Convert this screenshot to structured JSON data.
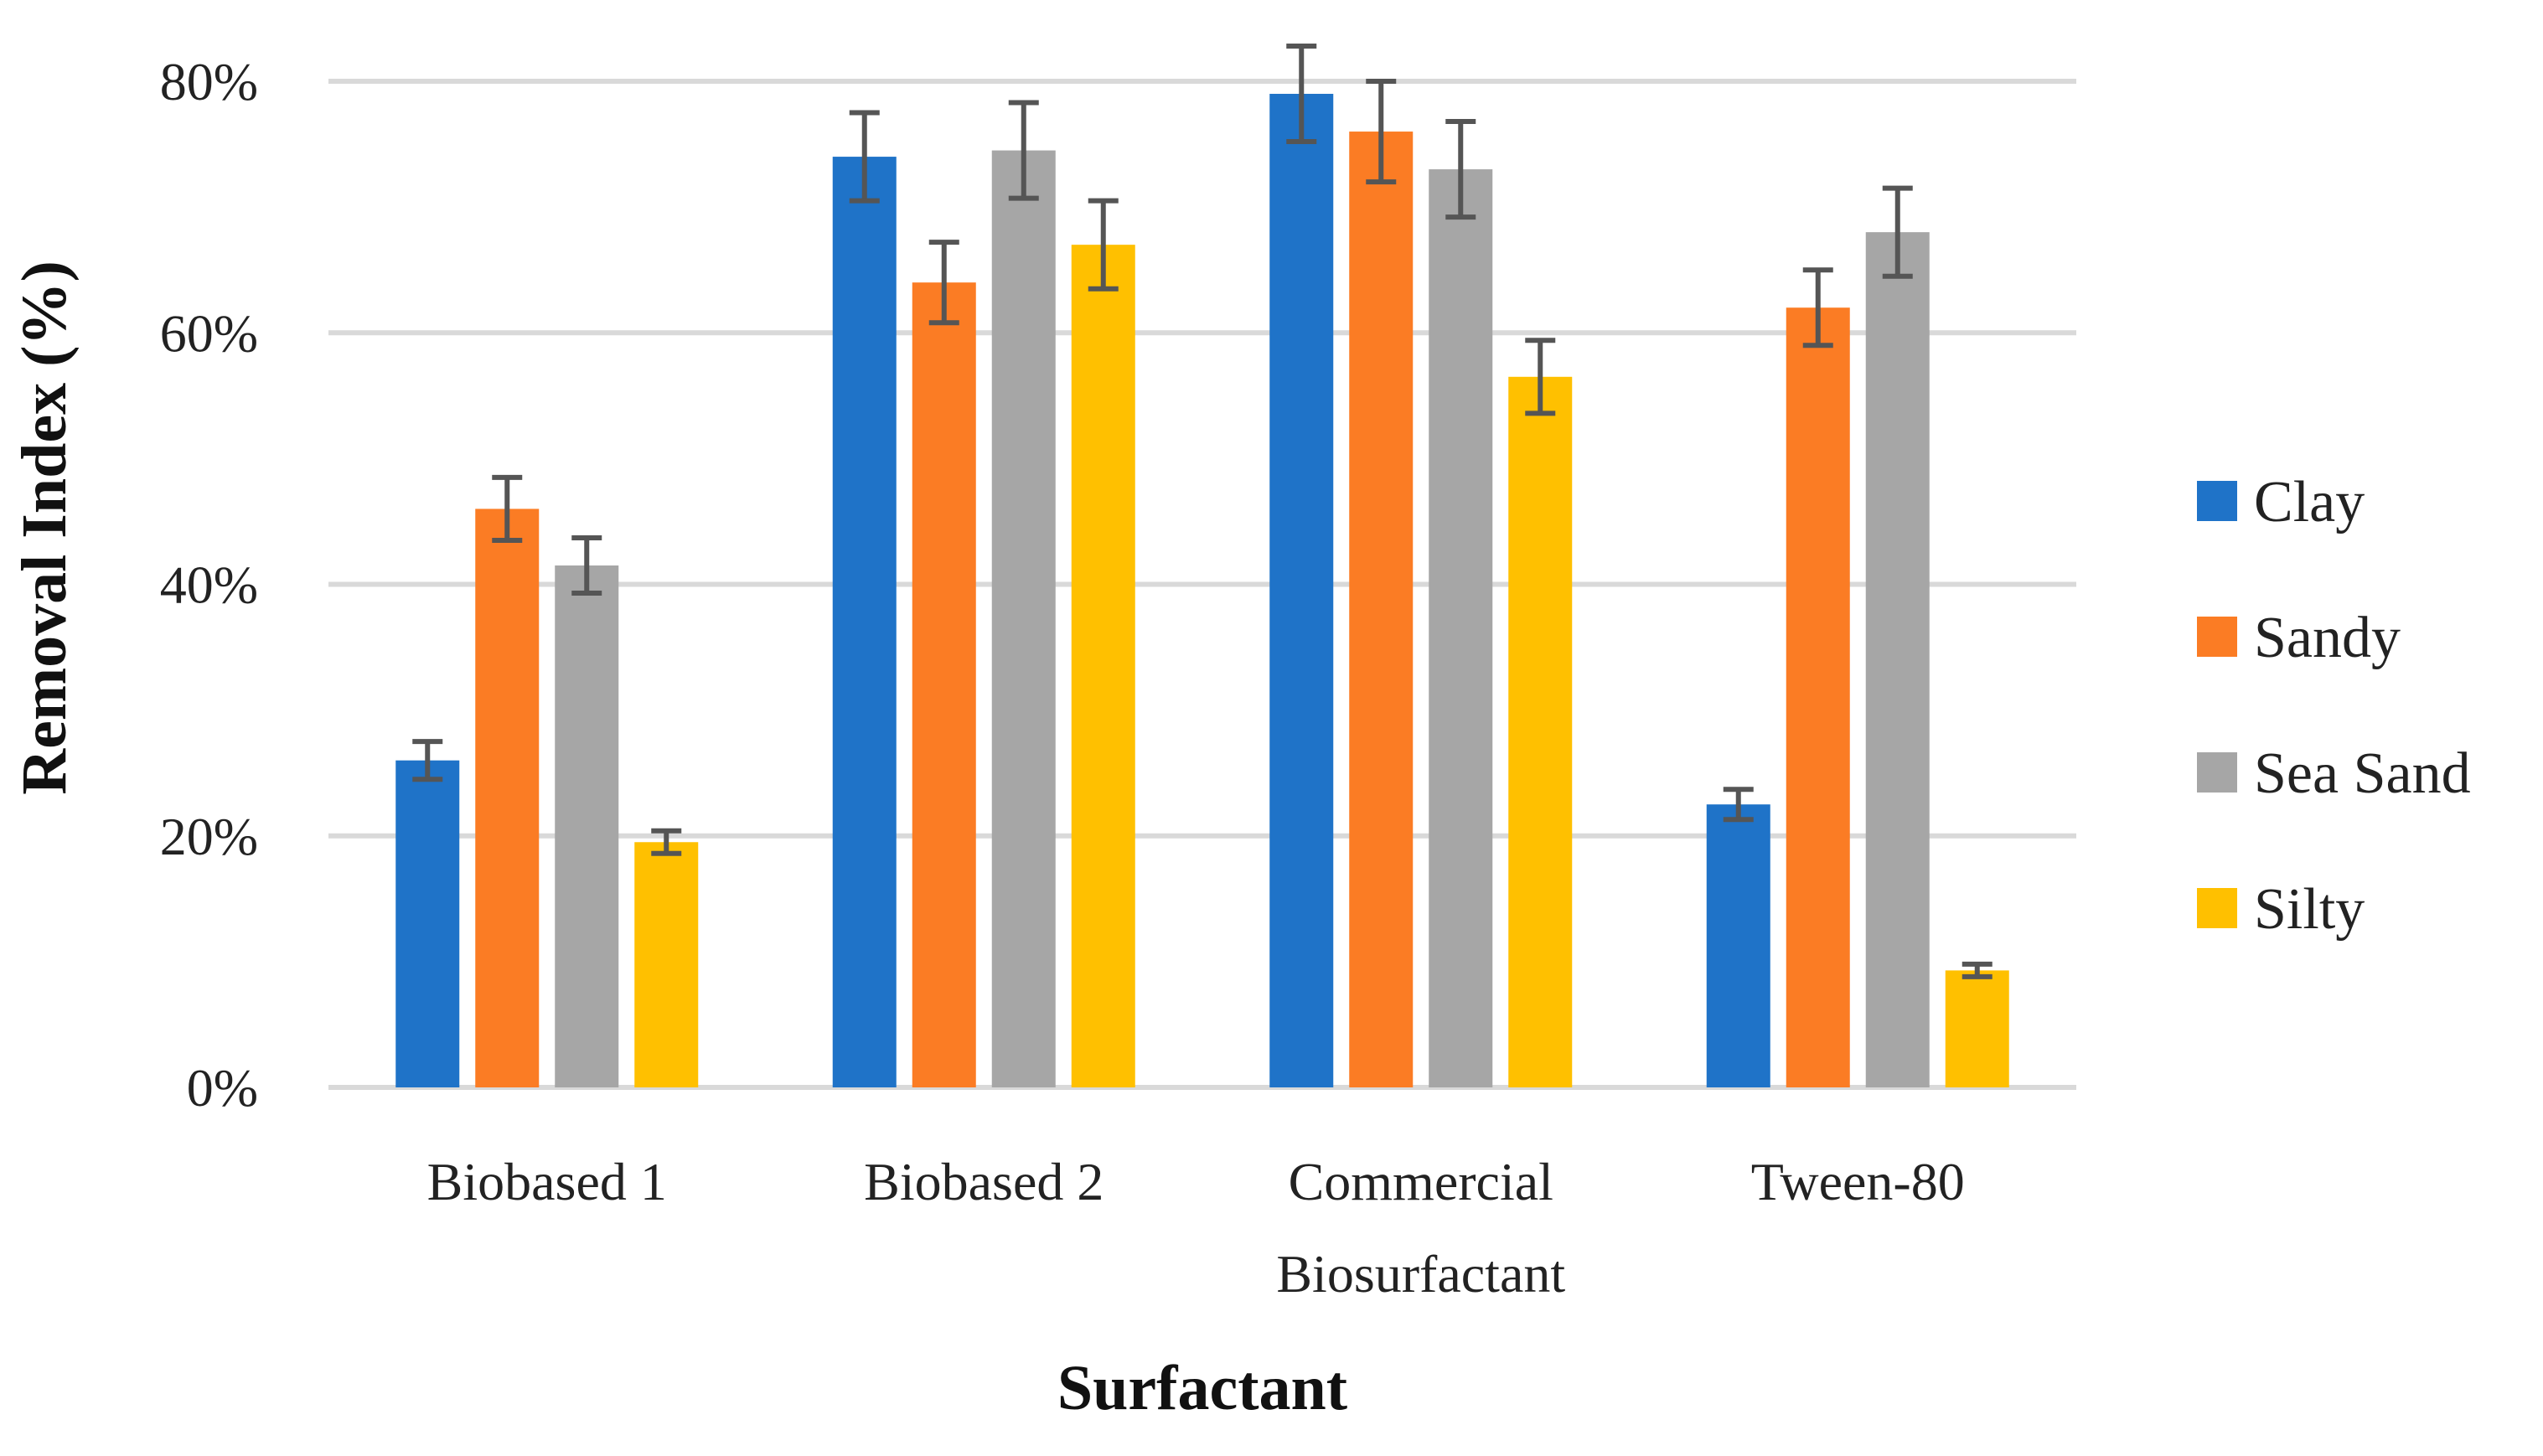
{
  "chart_data": {
    "type": "bar",
    "title": "",
    "xlabel": "Surfactant",
    "ylabel": "Removal Index (%)",
    "ylim": [
      0,
      80
    ],
    "yticks": [
      "0%",
      "20%",
      "40%",
      "60%",
      "80%"
    ],
    "ytick_values": [
      0,
      20,
      40,
      60,
      80
    ],
    "grid": true,
    "legend_position": "right",
    "categories": [
      [
        "Biobased 1"
      ],
      [
        "Biobased 2"
      ],
      [
        "Commercial",
        "Biosurfactant"
      ],
      [
        "Tween-80"
      ]
    ],
    "series": [
      {
        "name": "Clay",
        "color": "#1f73c8",
        "values": [
          26,
          74,
          79,
          22.5
        ],
        "errors": [
          1.5,
          3.5,
          3.8,
          1.2
        ]
      },
      {
        "name": "Sandy",
        "color": "#fb7c24",
        "values": [
          46,
          64,
          76,
          62
        ],
        "errors": [
          2.5,
          3.2,
          4,
          3
        ]
      },
      {
        "name": "Sea Sand",
        "color": "#a6a6a6",
        "values": [
          41.5,
          74.5,
          73,
          68
        ],
        "errors": [
          2.2,
          3.8,
          3.8,
          3.5
        ]
      },
      {
        "name": "Silty",
        "color": "#ffc000",
        "values": [
          19.5,
          67,
          56.5,
          9.3
        ],
        "errors": [
          0.9,
          3.5,
          2.9,
          0.5
        ]
      }
    ]
  }
}
